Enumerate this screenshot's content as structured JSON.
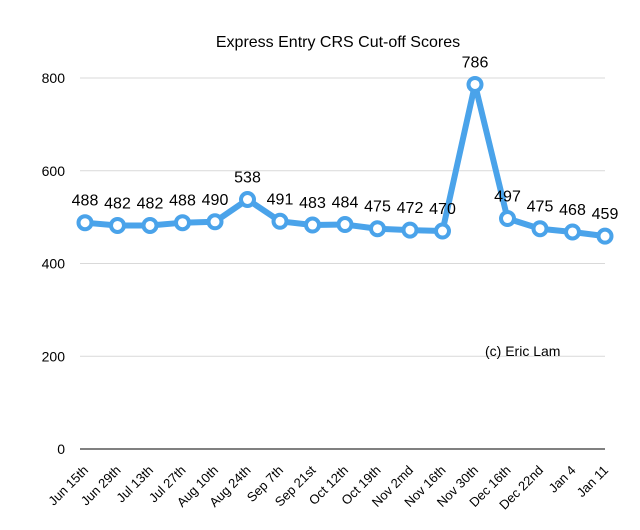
{
  "chart_data": {
    "type": "line",
    "title": "Express Entry CRS Cut-off Scores",
    "xlabel": "",
    "ylabel": "",
    "categories": [
      "Jun 15th",
      "Jun 29th",
      "Jul 13th",
      "Jul 27th",
      "Aug 10th",
      "Aug 24th",
      "Sep 7th",
      "Sep 21st",
      "Oct 12th",
      "Oct 19th",
      "Nov 2md",
      "Nov 16th",
      "Nov 30th",
      "Dec 16th",
      "Dec 22nd",
      "Jan 4",
      "Jan 11"
    ],
    "series": [
      {
        "values": [
          488,
          482,
          482,
          488,
          490,
          538,
          491,
          483,
          484,
          475,
          472,
          470,
          786,
          497,
          475,
          468,
          459
        ]
      }
    ],
    "ylim": [
      0,
      800
    ],
    "yticks": [
      0,
      200,
      400,
      600,
      800
    ],
    "grid": true,
    "legend": "none",
    "annotation": "(c) Eric Lam",
    "colors": {
      "line": "#4aa3ea",
      "marker_fill": "#ffffff",
      "grid": "#d9d9d9",
      "axis": "#000000"
    }
  }
}
